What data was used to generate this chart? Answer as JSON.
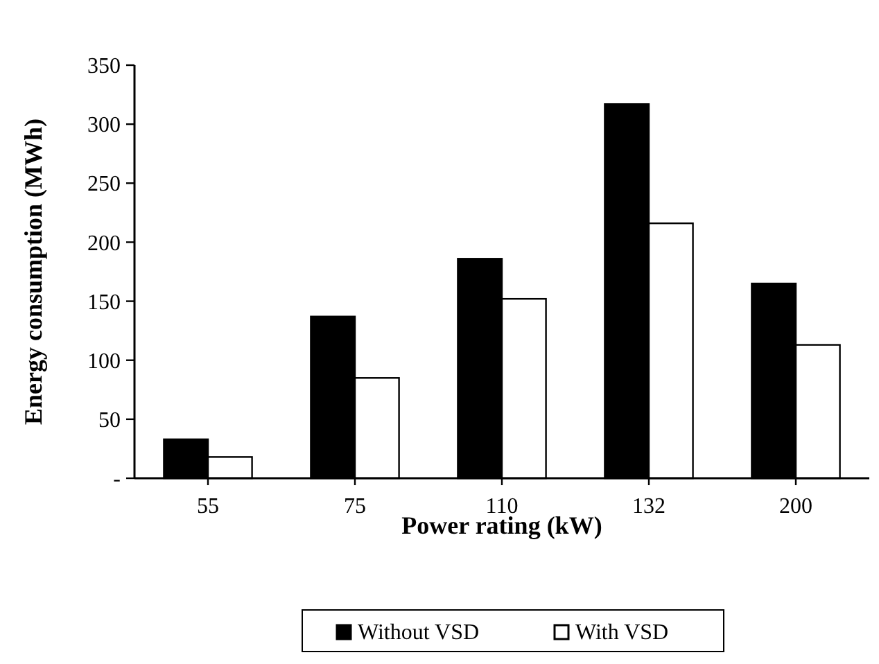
{
  "chart_data": {
    "type": "bar",
    "xlabel": "Power rating (kW)",
    "ylabel": "Energy consumption (MWh)",
    "categories": [
      "55",
      "75",
      "110",
      "132",
      "200"
    ],
    "series": [
      {
        "name": "Without VSD",
        "color": "#000000",
        "values": [
          33,
          137,
          186,
          317,
          165
        ]
      },
      {
        "name": "With VSD",
        "color": "#ffffff",
        "values": [
          18,
          85,
          152,
          216,
          113
        ]
      }
    ],
    "ylim": [
      0,
      350
    ],
    "yticks": [
      {
        "value": 0,
        "label": "-"
      },
      50,
      100,
      150,
      200,
      250,
      300,
      350
    ],
    "grid": false,
    "legend": "bottom"
  }
}
